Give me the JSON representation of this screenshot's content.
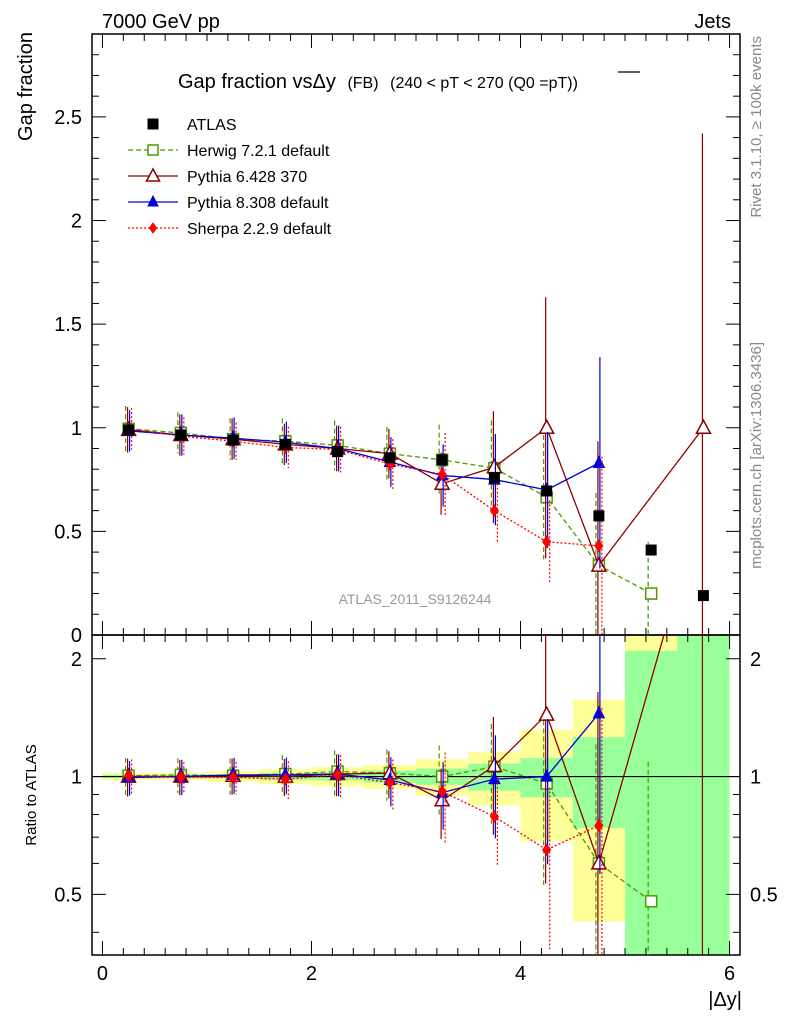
{
  "header": {
    "left": "7000 GeV pp",
    "right": "Jets"
  },
  "side": {
    "rivet": "Rivet 3.1.10, ≥ 100k events",
    "mcplots": "mcplots.cern.ch [arXiv:1306.3436]"
  },
  "chart_data": {
    "type": "scatter",
    "title": "Gap fraction vsΔy",
    "title_suffix": "(FB)",
    "title_cut": "(240 < pT < 270 (Q0 =pT))",
    "ylabel": "Gap fraction",
    "ratio_ylabel": "Ratio to ATLAS",
    "xlabel": "|Δy|",
    "watermark": "ATLAS_2011_S9126244",
    "xlim": [
      -0.1,
      6.1
    ],
    "ylim": [
      0,
      2.9
    ],
    "ratio_ylim": [
      0.35,
      2.3
    ],
    "xticks": [
      "0",
      "2",
      "4",
      "6"
    ],
    "yticks": [
      "0",
      "0.5",
      "1",
      "1.5",
      "2",
      "2.5"
    ],
    "ratio_yticks": [
      "0.5",
      "1",
      "2"
    ],
    "x": [
      0.25,
      0.75,
      1.25,
      1.75,
      2.25,
      2.75,
      3.25,
      3.75,
      4.25,
      4.75,
      5.25,
      5.75
    ],
    "data": {
      "name": "ATLAS",
      "values": [
        0.99,
        0.965,
        0.94,
        0.92,
        0.885,
        0.855,
        0.845,
        0.76,
        0.695,
        0.575,
        0.41,
        0.19
      ],
      "band_inner": [
        0.01,
        0.01,
        0.01,
        0.02,
        0.02,
        0.03,
        0.04,
        0.06,
        0.08,
        0.15,
        0.45,
        0.85
      ],
      "band_outer": [
        0.02,
        0.02,
        0.03,
        0.04,
        0.05,
        0.06,
        0.09,
        0.12,
        0.22,
        0.33,
        0.95,
        1.7
      ]
    },
    "series": [
      {
        "name": "Herwig 7.2.1 default",
        "color": "#4a9a00",
        "marker": "open-square",
        "dash": "5,3",
        "values": [
          0.995,
          0.975,
          0.945,
          0.935,
          0.915,
          0.875,
          0.845,
          0.805,
          0.665,
          0.335,
          0.2,
          null
        ],
        "errors": [
          0.11,
          0.1,
          0.1,
          0.11,
          0.12,
          0.13,
          0.17,
          0.23,
          0.3,
          0.35,
          0.25,
          null
        ]
      },
      {
        "name": "Pythia 6.428 370",
        "color": "#8b0000",
        "marker": "open-triangle",
        "dash": "",
        "values": [
          0.99,
          0.965,
          0.945,
          0.92,
          0.9,
          0.875,
          0.73,
          0.81,
          1.0,
          0.335,
          null,
          1.0
        ],
        "errors": [
          0.11,
          0.1,
          0.1,
          0.1,
          0.11,
          0.12,
          0.15,
          0.27,
          0.63,
          0.6,
          null,
          1.42
        ]
      },
      {
        "name": "Pythia 8.308 default",
        "color": "#0000dd",
        "marker": "filled-triangle",
        "dash": "",
        "values": [
          0.985,
          0.965,
          0.95,
          0.93,
          0.9,
          0.835,
          0.77,
          0.75,
          0.7,
          0.83,
          null,
          null
        ],
        "errors": [
          0.1,
          0.1,
          0.1,
          0.1,
          0.11,
          0.12,
          0.15,
          0.22,
          0.28,
          0.51,
          null,
          null
        ]
      },
      {
        "name": "Sherpa 2.2.9 default",
        "color": "#ff0000",
        "marker": "filled-diamond",
        "dash": "2,2",
        "values": [
          0.995,
          0.96,
          0.935,
          0.905,
          0.895,
          0.825,
          0.775,
          0.6,
          0.45,
          0.43,
          null,
          null
        ],
        "errors": [
          0.1,
          0.09,
          0.09,
          0.1,
          0.11,
          0.12,
          0.2,
          0.15,
          0.2,
          0.43,
          null,
          null
        ]
      }
    ],
    "ratio": {
      "Herwig 7.2.1 default": [
        1.005,
        1.01,
        1.005,
        1.015,
        1.03,
        1.02,
        1.0,
        1.06,
        0.96,
        0.6,
        0.48,
        null
      ],
      "Pythia 6.428 370": [
        1.0,
        1.0,
        1.005,
        1.0,
        1.015,
        1.02,
        0.87,
        1.065,
        1.44,
        0.6,
        null,
        5.2
      ],
      "Pythia 8.308 default": [
        0.995,
        1.0,
        1.01,
        1.01,
        1.015,
        0.98,
        0.91,
        0.985,
        1.0,
        1.45,
        null,
        null
      ],
      "Sherpa 2.2.9 default": [
        1.005,
        0.995,
        0.995,
        0.985,
        1.01,
        0.965,
        0.915,
        0.79,
        0.65,
        0.75,
        null,
        null
      ]
    },
    "grid": false,
    "legend": "top-left",
    "colors": {
      "band_inner": "#99ff99",
      "band_outer": "#ffff99"
    }
  }
}
